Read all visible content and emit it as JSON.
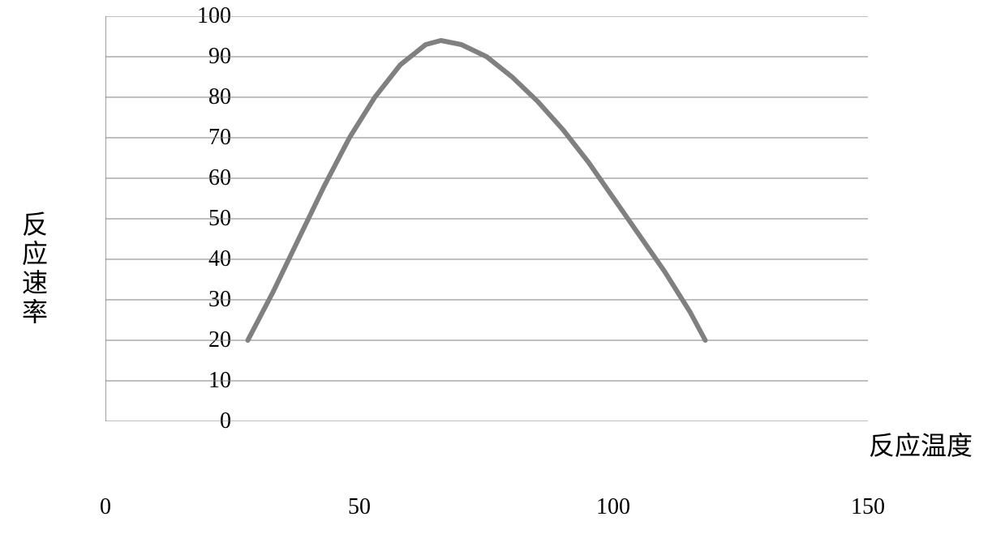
{
  "chart": {
    "type": "line",
    "ylabel": "反应速率",
    "xlabel": "反应温度",
    "ylim": [
      0,
      100
    ],
    "xlim": [
      0,
      150
    ],
    "ytick_step": 10,
    "xtick_step": 50,
    "yticks": [
      0,
      10,
      20,
      30,
      40,
      50,
      60,
      70,
      80,
      90,
      100
    ],
    "xticks": [
      0,
      50,
      100,
      150
    ],
    "label_fontsize": 32,
    "tick_fontsize": 28,
    "background_color": "#ffffff",
    "grid_color": "#808080",
    "grid_width": 1,
    "axis_color": "#808080",
    "axis_width": 1.5,
    "line_color": "#808080",
    "line_width": 6,
    "series": {
      "x": [
        28,
        33,
        38,
        43,
        48,
        53,
        58,
        63,
        66,
        70,
        75,
        80,
        85,
        90,
        95,
        100,
        105,
        110,
        115,
        118
      ],
      "y": [
        20,
        32,
        45,
        58,
        70,
        80,
        88,
        93,
        94,
        93,
        90,
        85,
        79,
        72,
        64,
        55,
        46,
        37,
        27,
        20
      ]
    }
  }
}
